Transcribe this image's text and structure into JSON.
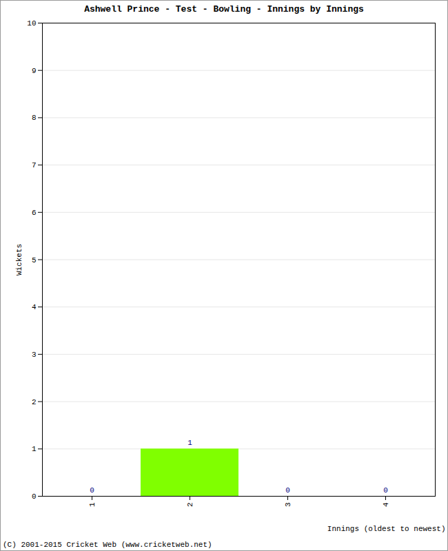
{
  "chart_data": {
    "type": "bar",
    "title": "Ashwell Prince - Test - Bowling - Innings by Innings",
    "x_label": "Innings (oldest to newest)",
    "y_label": "Wickets",
    "categories": [
      "1",
      "2",
      "3",
      "4"
    ],
    "values": [
      0,
      1,
      0,
      0
    ],
    "color": "#80ff00",
    "ylim": [
      0,
      10
    ],
    "yticks": [
      0,
      1,
      2,
      3,
      4,
      5,
      6,
      7,
      8,
      9,
      10
    ],
    "grid": true,
    "data_labels": true,
    "caption": "(C) 2001-2015 Cricket Web (www.cricketweb.net)"
  }
}
